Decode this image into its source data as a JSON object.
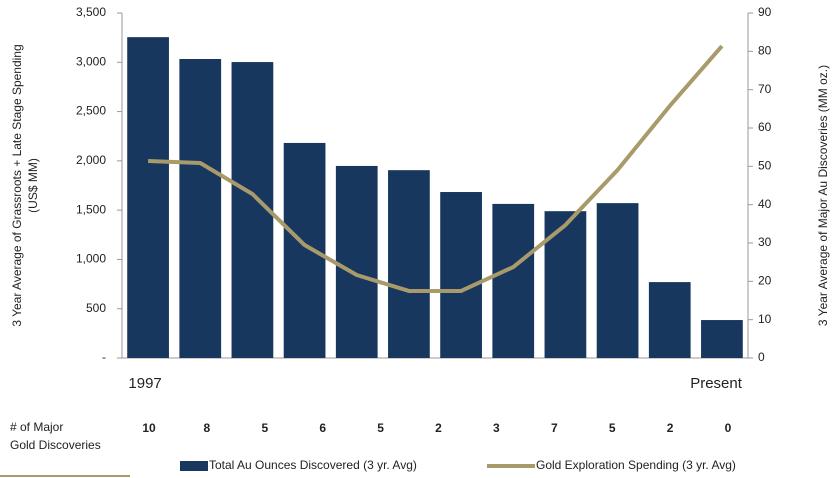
{
  "chart_data": {
    "type": "bar_line",
    "categories": [
      "1997",
      null,
      null,
      null,
      null,
      null,
      null,
      null,
      null,
      null,
      null,
      "Present"
    ],
    "series": [
      {
        "name": "Total Au Ounces Discovered (3 yr. Avg)",
        "type": "bar",
        "axis": "y2",
        "color": "#17375e",
        "values": [
          83.7,
          78.0,
          77.2,
          56.1,
          50.1,
          49.0,
          43.3,
          40.2,
          38.3,
          40.4,
          19.8,
          9.9
        ]
      },
      {
        "name": "Gold Exploration Spending (3 yr. Avg)",
        "type": "line",
        "axis": "y",
        "color": "#a99a6b",
        "values": [
          1999,
          1978,
          1664,
          1146,
          842,
          680,
          680,
          923,
          1349,
          1907,
          2557,
          3165
        ]
      }
    ],
    "ylabel": [
      "3 Year Average of Grassroots + Late Stage Spending",
      "(US$ MM)"
    ],
    "y2label": "3 Year Average of Major Au Discoveries  (MM oz.)",
    "ylim": [
      0,
      3500
    ],
    "yticks": [
      {
        "value": 0,
        "label": "-"
      },
      500,
      {
        "value": 1000,
        "label": "1,000"
      },
      {
        "value": 1500,
        "label": "1,500"
      },
      {
        "value": 2000,
        "label": "2,000"
      },
      {
        "value": 2500,
        "label": "2,500"
      },
      {
        "value": 3000,
        "label": "3,000"
      },
      {
        "value": 3500,
        "label": "3,500"
      }
    ],
    "y2lim": [
      0,
      90
    ],
    "y2ticks": [
      0,
      10,
      20,
      30,
      40,
      50,
      60,
      70,
      80,
      90
    ],
    "discoveries_label": [
      "# of Major",
      "Gold Discoveries"
    ],
    "discoveries": [
      10,
      8,
      5,
      6,
      5,
      2,
      3,
      7,
      5,
      2,
      0
    ]
  }
}
